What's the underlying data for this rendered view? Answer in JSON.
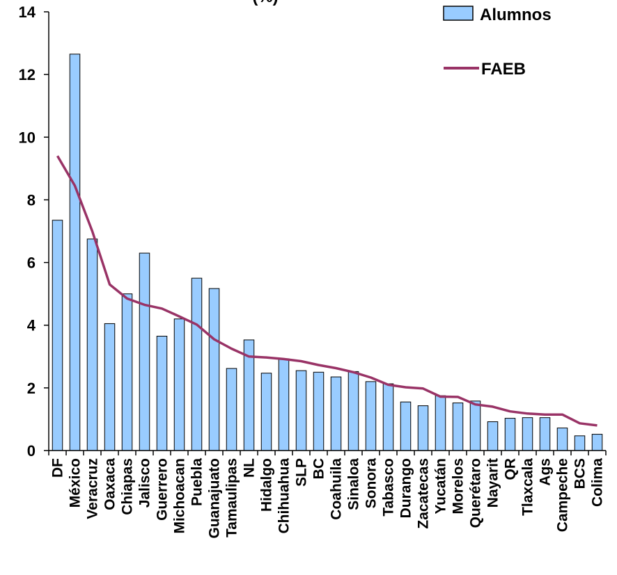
{
  "chart_data": {
    "type": "bar",
    "title_fragment": "(%)",
    "categories": [
      "DF",
      "México",
      "Veracruz",
      "Oaxaca",
      "Chiapas",
      "Jalisco",
      "Guerrero",
      "Michoacan",
      "Puebla",
      "Guanajuato",
      "Tamaulipas",
      "NL",
      "Hidalgo",
      "Chihuahua",
      "SLP",
      "BC",
      "Coahuila",
      "Sinaloa",
      "Sonora",
      "Tabasco",
      "Durango",
      "Zacatecas",
      "Yucatán",
      "Morelos",
      "Querétaro",
      "Nayarit",
      "QR",
      "Tlaxcala",
      "Ags",
      "Campeche",
      "BCS",
      "Colima"
    ],
    "series": [
      {
        "name": "Alumnos",
        "kind": "bar",
        "color": "#99ccff",
        "values": [
          7.35,
          12.65,
          6.75,
          4.05,
          5.0,
          6.3,
          3.65,
          4.2,
          5.5,
          5.17,
          2.62,
          3.53,
          2.47,
          2.93,
          2.55,
          2.5,
          2.35,
          2.52,
          2.2,
          2.13,
          1.55,
          1.43,
          1.75,
          1.52,
          1.58,
          0.92,
          1.03,
          1.05,
          1.05,
          0.72,
          0.47,
          0.52
        ]
      },
      {
        "name": "FAEB",
        "kind": "line",
        "color": "#993366",
        "values": [
          9.4,
          8.45,
          7.0,
          5.3,
          4.85,
          4.65,
          4.53,
          4.28,
          4.02,
          3.55,
          3.25,
          3.0,
          2.97,
          2.92,
          2.85,
          2.73,
          2.63,
          2.5,
          2.33,
          2.1,
          2.02,
          1.98,
          1.72,
          1.71,
          1.47,
          1.4,
          1.25,
          1.18,
          1.15,
          1.15,
          0.87,
          0.8
        ]
      }
    ],
    "ylim": [
      0,
      14
    ],
    "yticks": [
      "0",
      "2",
      "4",
      "6",
      "8",
      "10",
      "12",
      "14"
    ],
    "grid": false,
    "legend": "top-right"
  }
}
